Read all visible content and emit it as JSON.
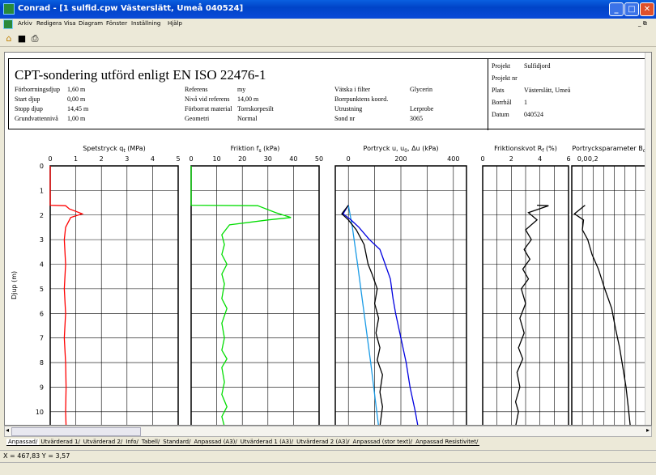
{
  "window": {
    "title": "Conrad  - [1 sulfid.cpw  Västerslätt, Umeå 040524]"
  },
  "menu": [
    "Arkiv",
    "Redigera",
    "Visa",
    "Diagram",
    "Fönster",
    "Inställning",
    "Hjälp"
  ],
  "doc": {
    "title": "CPT-sondering utförd enligt EN ISO 22476-1",
    "col1": [
      [
        "Förborrningsdjup",
        "1,60 m"
      ],
      [
        "Start djup",
        "0,00 m"
      ],
      [
        "Stopp djup",
        "14,45 m"
      ],
      [
        "Grundvattennivå",
        "1,00 m"
      ]
    ],
    "col2": [
      [
        "Referens",
        "my"
      ],
      [
        "Nivå vid referens",
        "14,00 m"
      ],
      [
        "Förborrat material",
        "Torrskorpesilt"
      ],
      [
        "Geometri",
        "Normal"
      ]
    ],
    "col3": [
      [
        "Vätska i filter",
        "Glycerin"
      ],
      [
        "Borrpunktens koord.",
        ""
      ],
      [
        "Utrustning",
        "Lerprobe"
      ],
      [
        "Sond nr",
        "3065"
      ]
    ],
    "project": [
      [
        "Projekt",
        "Sulfidjord"
      ],
      [
        "Projekt nr",
        ""
      ],
      [
        "Plats",
        "Västerslätt, Umeå"
      ],
      [
        "Borrhål",
        "1"
      ],
      [
        "Datum",
        "040524"
      ]
    ]
  },
  "chart_data": {
    "type": "line",
    "ylabel": "Djup (m)",
    "ylim": [
      0,
      10.6
    ],
    "yticks": [
      "0",
      "1",
      "2",
      "3",
      "4",
      "5",
      "6",
      "7",
      "8",
      "9",
      "10"
    ],
    "panels": [
      {
        "title": "Spetstryck q",
        "sub": "t",
        "unit": " (MPa)",
        "xlim": [
          0,
          5
        ],
        "xticks": [
          "0",
          "1",
          "2",
          "3",
          "4",
          "5"
        ],
        "series": [
          {
            "color": "#ff0000",
            "points": [
              [
                0,
                0
              ],
              [
                0,
                1.6
              ],
              [
                0.6,
                1.62
              ],
              [
                0.75,
                1.75
              ],
              [
                1.25,
                1.95
              ],
              [
                0.8,
                2.1
              ],
              [
                0.7,
                2.3
              ],
              [
                0.6,
                2.5
              ],
              [
                0.55,
                3
              ],
              [
                0.6,
                4
              ],
              [
                0.55,
                5
              ],
              [
                0.6,
                6
              ],
              [
                0.55,
                7
              ],
              [
                0.6,
                8
              ],
              [
                0.62,
                9
              ],
              [
                0.6,
                10
              ],
              [
                0.62,
                10.6
              ]
            ]
          }
        ]
      },
      {
        "title": "Friktion f",
        "sub": "s",
        "unit": " (kPa)",
        "xlim": [
          0,
          50
        ],
        "xticks": [
          "0",
          "10",
          "20",
          "30",
          "40",
          "50"
        ],
        "series": [
          {
            "color": "#00dd00",
            "points": [
              [
                0,
                0
              ],
              [
                0,
                1.6
              ],
              [
                26,
                1.62
              ],
              [
                33,
                1.9
              ],
              [
                39,
                2.1
              ],
              [
                30,
                2.2
              ],
              [
                15,
                2.4
              ],
              [
                12,
                2.8
              ],
              [
                13,
                3.2
              ],
              [
                12,
                3.6
              ],
              [
                14,
                4.0
              ],
              [
                12,
                4.4
              ],
              [
                13,
                4.8
              ],
              [
                12,
                5.4
              ],
              [
                14,
                5.8
              ],
              [
                12,
                6.4
              ],
              [
                13,
                7.0
              ],
              [
                12,
                7.5
              ],
              [
                14,
                7.85
              ],
              [
                12,
                8.2
              ],
              [
                13,
                8.8
              ],
              [
                12,
                9.3
              ],
              [
                14,
                9.8
              ],
              [
                12,
                10.2
              ],
              [
                13,
                10.6
              ]
            ]
          }
        ]
      },
      {
        "title": "Portryck u, u",
        "sub": "0",
        "unit": ", Δu  (kPa)",
        "xlim": [
          -50,
          450
        ],
        "xticks": [
          "0",
          "200",
          "400"
        ],
        "xtickvals": [
          0,
          200,
          400
        ],
        "series": [
          {
            "color": "#1a9be6",
            "points": [
              [
                0,
                1.6
              ],
              [
                15,
                2.5
              ],
              [
                35,
                4
              ],
              [
                60,
                6
              ],
              [
                85,
                8
              ],
              [
                108,
                10
              ],
              [
                115,
                10.6
              ]
            ]
          },
          {
            "color": "#0000e0",
            "points": [
              [
                0,
                1.6
              ],
              [
                -20,
                1.95
              ],
              [
                10,
                2.2
              ],
              [
                40,
                2.5
              ],
              [
                80,
                3
              ],
              [
                120,
                3.4
              ],
              [
                140,
                4
              ],
              [
                160,
                4.6
              ],
              [
                170,
                5.4
              ],
              [
                180,
                6.0
              ],
              [
                200,
                7
              ],
              [
                220,
                8
              ],
              [
                235,
                9
              ],
              [
                255,
                10
              ],
              [
                265,
                10.6
              ]
            ]
          },
          {
            "color": "#000000",
            "points": [
              [
                0,
                1.6
              ],
              [
                -25,
                1.95
              ],
              [
                0,
                2.2
              ],
              [
                30,
                2.6
              ],
              [
                60,
                3.2
              ],
              [
                75,
                4
              ],
              [
                90,
                4.4
              ],
              [
                110,
                5
              ],
              [
                100,
                5.6
              ],
              [
                115,
                6.2
              ],
              [
                105,
                6.8
              ],
              [
                120,
                7.4
              ],
              [
                110,
                7.9
              ],
              [
                130,
                8.5
              ],
              [
                120,
                9.2
              ],
              [
                130,
                9.8
              ],
              [
                120,
                10.6
              ]
            ]
          }
        ]
      },
      {
        "title": "Friktionskvot R",
        "sub": "f",
        "unit": " (%)",
        "xlim": [
          0,
          6
        ],
        "xticks": [
          "0",
          "2",
          "4",
          "6"
        ],
        "xtickvals": [
          0,
          2,
          4,
          6
        ],
        "series": [
          {
            "color": "#000000",
            "points": [
              [
                3.8,
                1.6
              ],
              [
                4.6,
                1.62
              ],
              [
                3.2,
                1.9
              ],
              [
                3.8,
                2.2
              ],
              [
                3.0,
                2.6
              ],
              [
                3.4,
                3
              ],
              [
                2.9,
                3.4
              ],
              [
                3.3,
                3.8
              ],
              [
                2.8,
                4.2
              ],
              [
                3.2,
                4.6
              ],
              [
                2.7,
                5
              ],
              [
                3.0,
                5.6
              ],
              [
                2.6,
                6.2
              ],
              [
                2.9,
                6.8
              ],
              [
                2.5,
                7.4
              ],
              [
                2.8,
                7.85
              ],
              [
                2.4,
                8.4
              ],
              [
                2.6,
                9
              ],
              [
                2.3,
                9.6
              ],
              [
                2.5,
                10
              ],
              [
                2.3,
                10.6
              ]
            ]
          }
        ]
      },
      {
        "title": "Portrycksparameter B",
        "sub": "q",
        "unit": "",
        "xlim": [
          -0.2,
          1.2
        ],
        "xticks": [
          "0,0",
          "0,2"
        ],
        "xtickvals": [
          0,
          0.2
        ],
        "series": [
          {
            "color": "#000000",
            "points": [
              [
                0.05,
                1.6
              ],
              [
                -0.15,
                1.95
              ],
              [
                0.02,
                2.2
              ],
              [
                0.0,
                2.6
              ],
              [
                0.1,
                3
              ],
              [
                0.18,
                3.6
              ],
              [
                0.3,
                4.2
              ],
              [
                0.42,
                5
              ],
              [
                0.55,
                5.8
              ],
              [
                0.62,
                6.6
              ],
              [
                0.7,
                7.4
              ],
              [
                0.76,
                8.2
              ],
              [
                0.82,
                9
              ],
              [
                0.86,
                9.8
              ],
              [
                0.9,
                10.6
              ]
            ]
          }
        ]
      }
    ]
  },
  "tabs": [
    "Anpassad",
    "Utvärderad 1",
    "Utvärderad 2",
    "Info",
    "Tabell",
    "Standard",
    "Anpassad (A3)",
    "Utvärderad 1 (A3)",
    "Utvärderad 2 (A3)",
    "Anpassad (stor text)",
    "Anpassad Resistivitet"
  ],
  "status": "X = 467,83  Y = 3,57"
}
